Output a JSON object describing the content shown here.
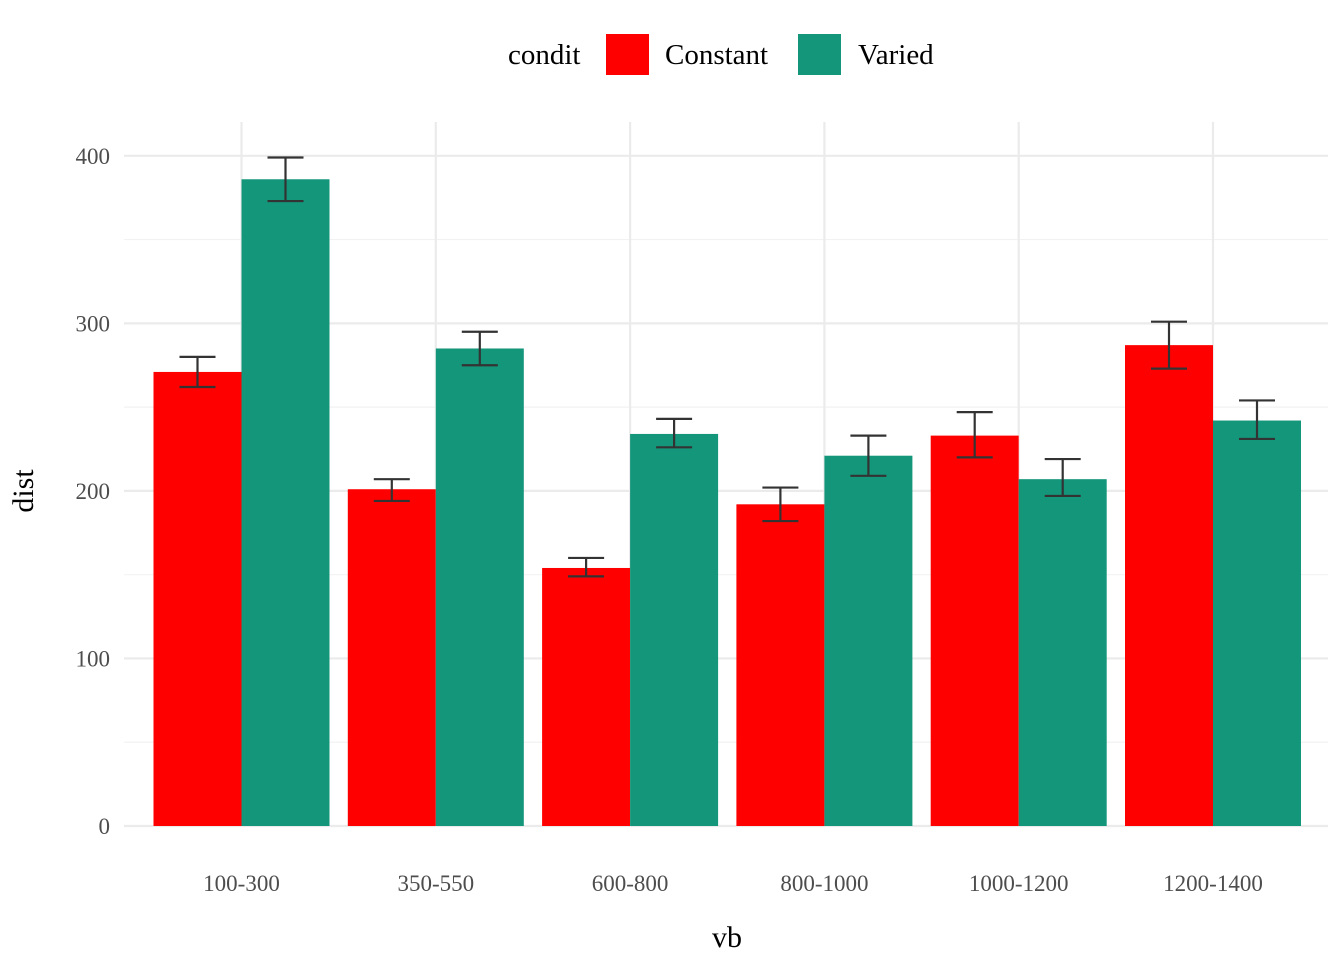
{
  "chart_data": {
    "type": "bar",
    "title": "",
    "xlabel": "vb",
    "ylabel": "dist",
    "categories": [
      "100-300",
      "350-550",
      "600-800",
      "800-1000",
      "1000-1200",
      "1200-1400"
    ],
    "ylim": [
      0,
      420
    ],
    "yticks": [
      0,
      100,
      200,
      300,
      400
    ],
    "y_minor_ticks": [
      50,
      150,
      250,
      350
    ],
    "grid": true,
    "legend": {
      "title": "condit",
      "position": "top",
      "entries": [
        "Constant",
        "Varied"
      ]
    },
    "series": [
      {
        "name": "Constant",
        "color": "#FF0000",
        "values": [
          271,
          201,
          154,
          192,
          233,
          287
        ],
        "error_low": [
          262,
          194,
          149,
          182,
          220,
          273
        ],
        "error_high": [
          280,
          207,
          160,
          202,
          247,
          301
        ]
      },
      {
        "name": "Varied",
        "color": "#14967A",
        "values": [
          386,
          285,
          234,
          221,
          207,
          242
        ],
        "error_low": [
          373,
          275,
          226,
          209,
          197,
          231
        ],
        "error_high": [
          399,
          295,
          243,
          233,
          219,
          254
        ]
      }
    ]
  }
}
